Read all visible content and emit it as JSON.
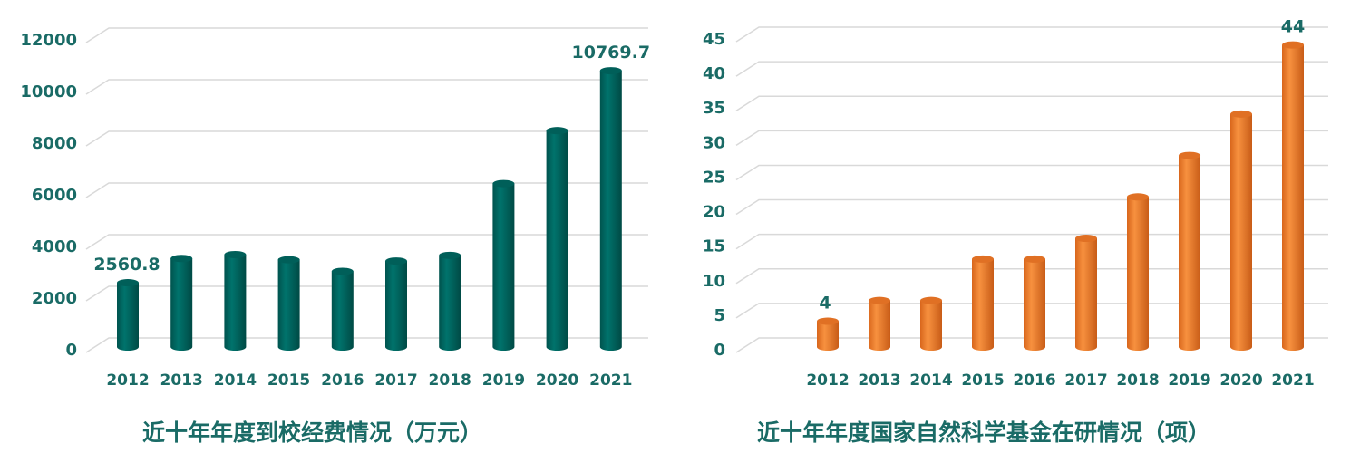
{
  "chart_data": [
    {
      "type": "bar",
      "title": "近十年年度到校经费情况（万元）",
      "categories": [
        "2012",
        "2013",
        "2014",
        "2015",
        "2016",
        "2017",
        "2018",
        "2019",
        "2020",
        "2021"
      ],
      "values": [
        2560.8,
        3500,
        3650,
        3450,
        3000,
        3400,
        3620,
        6400,
        8450,
        10769.7
      ],
      "data_labels": {
        "2012": "2560.8",
        "2021": "10769.7"
      },
      "ylim": [
        0,
        12000
      ],
      "yticks": [
        0,
        2000,
        4000,
        6000,
        8000,
        10000,
        12000
      ],
      "grid": true,
      "color": "#00605a",
      "style": "3d-cylinder"
    },
    {
      "type": "bar",
      "title": "近十年年度国家自然科学基金在研情况（项）",
      "categories": [
        "2012",
        "2013",
        "2014",
        "2015",
        "2016",
        "2017",
        "2018",
        "2019",
        "2020",
        "2021"
      ],
      "values": [
        4,
        7,
        7,
        13,
        13,
        16,
        22,
        28,
        34,
        44
      ],
      "data_labels": {
        "2012": "4",
        "2021": "44"
      },
      "ylim": [
        0,
        45
      ],
      "yticks": [
        0,
        5,
        10,
        15,
        20,
        25,
        30,
        35,
        40,
        45
      ],
      "grid": true,
      "color": "#f07f2c",
      "style": "3d-cylinder"
    }
  ]
}
